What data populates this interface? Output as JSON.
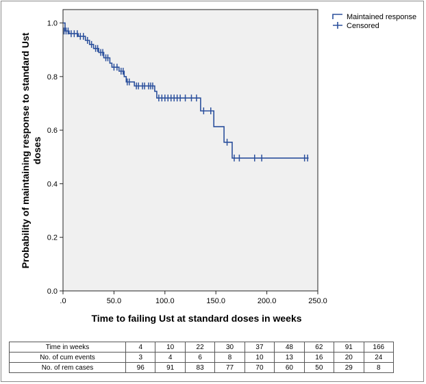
{
  "chart_data": {
    "type": "line",
    "title": "",
    "xlabel": "Time to failing Ust at standard doses in weeks",
    "ylabel_lines": [
      "Probability of maintaining response to standard Ust",
      "doses"
    ],
    "xlim": [
      0,
      250
    ],
    "ylim": [
      0,
      1.05
    ],
    "x_ticks": [
      0,
      50,
      100,
      150,
      200,
      250
    ],
    "x_tick_labels": [
      ".0",
      "50.0",
      "100.0",
      "150.0",
      "200.0",
      "250.0"
    ],
    "y_ticks": [
      0,
      0.2,
      0.4,
      0.6,
      0.8,
      1.0
    ],
    "y_tick_labels": [
      "0.0",
      "0.2",
      "0.4",
      "0.6",
      "0.8",
      "1.0"
    ],
    "grid": false,
    "legend_position": "top-right",
    "series": [
      {
        "name": "Maintained response",
        "color": "#2a4f9c",
        "step_points": [
          [
            0,
            1.0
          ],
          [
            2,
            1.0
          ],
          [
            2,
            0.97
          ],
          [
            6,
            0.97
          ],
          [
            6,
            0.96
          ],
          [
            15,
            0.96
          ],
          [
            15,
            0.95
          ],
          [
            22,
            0.95
          ],
          [
            22,
            0.935
          ],
          [
            26,
            0.935
          ],
          [
            26,
            0.92
          ],
          [
            30,
            0.92
          ],
          [
            30,
            0.905
          ],
          [
            35,
            0.905
          ],
          [
            35,
            0.89
          ],
          [
            40,
            0.89
          ],
          [
            40,
            0.87
          ],
          [
            46,
            0.87
          ],
          [
            46,
            0.85
          ],
          [
            48,
            0.85
          ],
          [
            48,
            0.835
          ],
          [
            55,
            0.835
          ],
          [
            55,
            0.82
          ],
          [
            60,
            0.82
          ],
          [
            60,
            0.8
          ],
          [
            62,
            0.8
          ],
          [
            62,
            0.78
          ],
          [
            70,
            0.78
          ],
          [
            70,
            0.765
          ],
          [
            90,
            0.765
          ],
          [
            90,
            0.745
          ],
          [
            92,
            0.745
          ],
          [
            92,
            0.72
          ],
          [
            135,
            0.72
          ],
          [
            135,
            0.672
          ],
          [
            148,
            0.672
          ],
          [
            148,
            0.613
          ],
          [
            158,
            0.613
          ],
          [
            158,
            0.555
          ],
          [
            166,
            0.555
          ],
          [
            166,
            0.496
          ],
          [
            241,
            0.496
          ]
        ]
      },
      {
        "name": "Censored",
        "color": "#2a4f9c",
        "points": [
          [
            1,
            0.97
          ],
          [
            3,
            0.97
          ],
          [
            5,
            0.97
          ],
          [
            8,
            0.96
          ],
          [
            11,
            0.96
          ],
          [
            14,
            0.96
          ],
          [
            17,
            0.95
          ],
          [
            20,
            0.95
          ],
          [
            24,
            0.935
          ],
          [
            28,
            0.92
          ],
          [
            32,
            0.905
          ],
          [
            34,
            0.905
          ],
          [
            37,
            0.89
          ],
          [
            39,
            0.89
          ],
          [
            42,
            0.87
          ],
          [
            44,
            0.87
          ],
          [
            50,
            0.835
          ],
          [
            53,
            0.835
          ],
          [
            57,
            0.82
          ],
          [
            59,
            0.82
          ],
          [
            63,
            0.78
          ],
          [
            65,
            0.78
          ],
          [
            72,
            0.765
          ],
          [
            74,
            0.765
          ],
          [
            78,
            0.765
          ],
          [
            80,
            0.765
          ],
          [
            84,
            0.765
          ],
          [
            86,
            0.765
          ],
          [
            88,
            0.765
          ],
          [
            94,
            0.72
          ],
          [
            97,
            0.72
          ],
          [
            100,
            0.72
          ],
          [
            103,
            0.72
          ],
          [
            106,
            0.72
          ],
          [
            109,
            0.72
          ],
          [
            112,
            0.72
          ],
          [
            115,
            0.72
          ],
          [
            120,
            0.72
          ],
          [
            126,
            0.72
          ],
          [
            131,
            0.72
          ],
          [
            138,
            0.672
          ],
          [
            145,
            0.672
          ],
          [
            161,
            0.555
          ],
          [
            168,
            0.496
          ],
          [
            173,
            0.496
          ],
          [
            188,
            0.496
          ],
          [
            195,
            0.496
          ],
          [
            237,
            0.496
          ],
          [
            240,
            0.496
          ]
        ]
      }
    ]
  },
  "risk_table": {
    "rows": [
      {
        "label": "Time in weeks",
        "values": [
          "4",
          "10",
          "22",
          "30",
          "37",
          "48",
          "62",
          "91",
          "166"
        ]
      },
      {
        "label": "No. of cum events",
        "values": [
          "3",
          "4",
          "6",
          "8",
          "10",
          "13",
          "16",
          "20",
          "24"
        ]
      },
      {
        "label": "No. of rem cases",
        "values": [
          "96",
          "91",
          "83",
          "77",
          "70",
          "60",
          "50",
          "29",
          "8"
        ]
      }
    ]
  }
}
